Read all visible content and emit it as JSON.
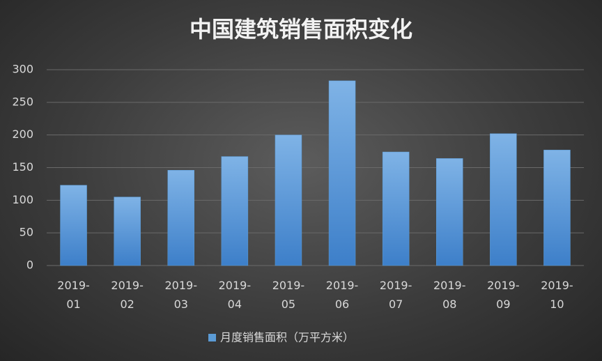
{
  "chart_data": {
    "type": "bar",
    "title": "中国建筑销售面积变化",
    "categories": [
      "2019-01",
      "2019-02",
      "2019-03",
      "2019-04",
      "2019-05",
      "2019-06",
      "2019-07",
      "2019-08",
      "2019-09",
      "2019-10"
    ],
    "series": [
      {
        "name": "月度销售面积（万平方米）",
        "color": "#5b9bd5",
        "values": [
          123,
          105,
          146,
          167,
          200,
          283,
          174,
          164,
          202,
          177
        ]
      }
    ],
    "ylim": [
      0,
      300
    ],
    "yticks": [
      0,
      50,
      100,
      150,
      200,
      250,
      300
    ],
    "grid": true,
    "legend": "bottom"
  }
}
